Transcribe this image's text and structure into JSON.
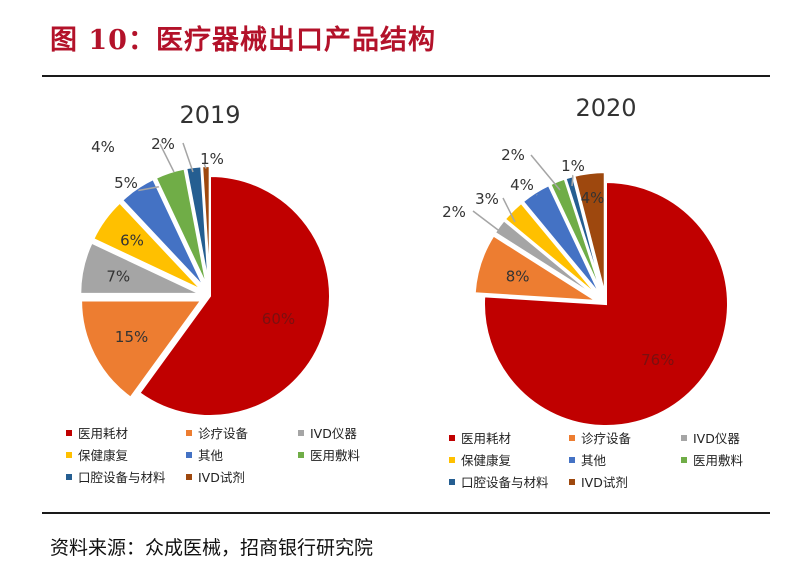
{
  "figure": {
    "title": "图 10：医疗器械出口产品结构",
    "source": "资料来源：众成医械，招商银行研究院"
  },
  "chart_data": [
    {
      "type": "pie",
      "title": "2019",
      "categories": [
        "医用耗材",
        "诊疗设备",
        "IVD仪器",
        "保健康复",
        "其他",
        "医用敷料",
        "口腔设备与材料",
        "IVD试剂"
      ],
      "values": [
        60,
        15,
        7,
        6,
        5,
        4,
        2,
        1
      ],
      "labels": [
        "60%",
        "15%",
        "7%",
        "6%",
        "5%",
        "4%",
        "2%",
        "1%"
      ],
      "colors": [
        "#c00000",
        "#ed7d31",
        "#a5a5a5",
        "#ffc000",
        "#4472c4",
        "#70ad47",
        "#255e91",
        "#9e480e"
      ],
      "exploded": [
        false,
        true,
        true,
        true,
        true,
        true,
        true,
        true
      ],
      "start_angle_deg": 0,
      "direction": "clockwise",
      "legend_position": "bottom"
    },
    {
      "type": "pie",
      "title": "2020",
      "categories": [
        "医用耗材",
        "诊疗设备",
        "IVD仪器",
        "保健康复",
        "其他",
        "医用敷料",
        "口腔设备与材料",
        "IVD试剂"
      ],
      "values": [
        76,
        8,
        2,
        3,
        4,
        2,
        1,
        4
      ],
      "labels": [
        "76%",
        "8%",
        "2%",
        "3%",
        "4%",
        "2%",
        "1%",
        "4%"
      ],
      "colors": [
        "#c00000",
        "#ed7d31",
        "#a5a5a5",
        "#ffc000",
        "#4472c4",
        "#70ad47",
        "#255e91",
        "#9e480e"
      ],
      "exploded": [
        false,
        true,
        true,
        true,
        true,
        true,
        true,
        true
      ],
      "start_angle_deg": 0,
      "direction": "clockwise",
      "legend_position": "bottom"
    }
  ]
}
